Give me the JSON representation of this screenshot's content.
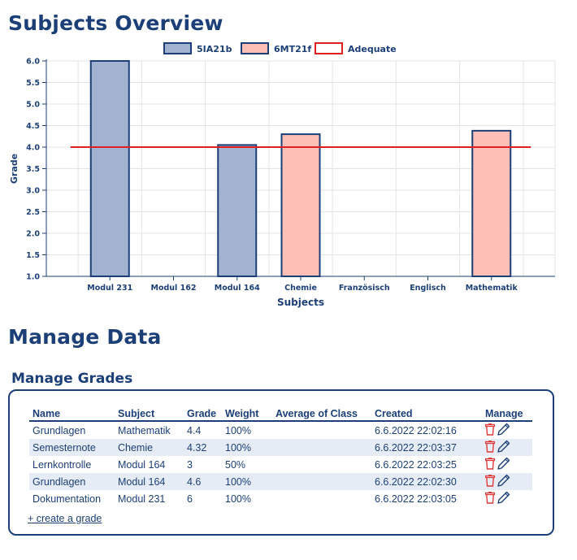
{
  "overview_title": "Subjects Overview",
  "manage_data_title": "Manage Data",
  "manage_grades_title": "Manage Grades",
  "colors": {
    "primary": "#1c3f78",
    "series_1_fill": "#a1b3d0",
    "series_2_fill": "#fec0b6",
    "adequate_line": "#e02020",
    "row_alt": "#e6ecf5",
    "trash_icon": "#e03a3a"
  },
  "chart_data": {
    "type": "bar",
    "title": "",
    "xlabel": "Subjects",
    "ylabel": "Grade",
    "ylim": [
      1,
      6
    ],
    "y_ticks": [
      "1.0",
      "1.5",
      "2.0",
      "2.5",
      "3.0",
      "3.5",
      "4.0",
      "4.5",
      "5.0",
      "5.5",
      "6.0"
    ],
    "grid": true,
    "legend_position": "top",
    "categories": [
      "Modul 231",
      "Modul 162",
      "Modul 164",
      "Chemie",
      "Französisch",
      "Englisch",
      "Mathematik"
    ],
    "series": [
      {
        "name": "5IA21b",
        "values": [
          6,
          null,
          4.05,
          null,
          null,
          null,
          null
        ]
      },
      {
        "name": "6MT21f",
        "values": [
          null,
          null,
          null,
          4.3,
          null,
          null,
          4.38
        ]
      }
    ],
    "reference_line": {
      "name": "Adequate",
      "value": 4
    }
  },
  "grades_table": {
    "columns": [
      "Name",
      "Subject",
      "Grade",
      "Weight",
      "Average of Class",
      "Created",
      "Manage"
    ],
    "rows": [
      {
        "name": "Grundlagen",
        "subject": "Mathematik",
        "grade": "4.4",
        "weight": "100%",
        "average": "",
        "created": "6.6.2022 22:02:16"
      },
      {
        "name": "Semesternote",
        "subject": "Chemie",
        "grade": "4.32",
        "weight": "100%",
        "average": "",
        "created": "6.6.2022 22:03:37"
      },
      {
        "name": "Lernkontrolle",
        "subject": "Modul 164",
        "grade": "3",
        "weight": "50%",
        "average": "",
        "created": "6.6.2022 22:03:25"
      },
      {
        "name": "Grundlagen",
        "subject": "Modul 164",
        "grade": "4.6",
        "weight": "100%",
        "average": "",
        "created": "6.6.2022 22:02:30"
      },
      {
        "name": "Dokumentation",
        "subject": "Modul 231",
        "grade": "6",
        "weight": "100%",
        "average": "",
        "created": "6.6.2022 22:03:05"
      }
    ],
    "actions": {
      "delete_icon": "trash-icon",
      "edit_icon": "pencil-icon"
    }
  },
  "create_grade_link": "+ create a grade"
}
